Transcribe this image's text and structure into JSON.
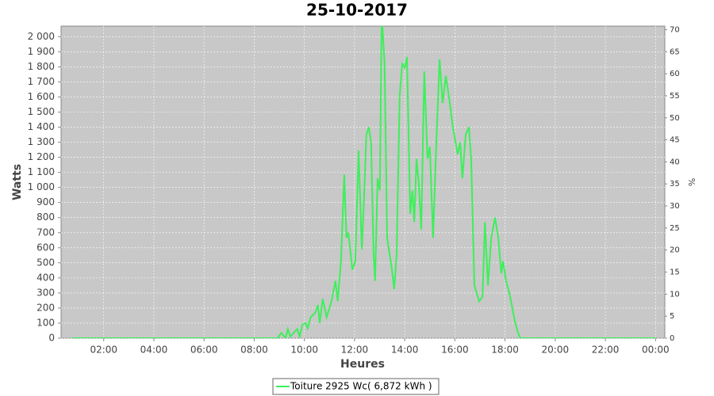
{
  "chart_data": {
    "type": "line",
    "title": "25-10-2017",
    "x_label": "Heures",
    "y_label": "Watts",
    "y2_label": "%",
    "xlim": [
      0.3,
      24.37
    ],
    "xticks": [
      {
        "value": 2,
        "label": "02:00"
      },
      {
        "value": 4,
        "label": "04:00"
      },
      {
        "value": 6,
        "label": "06:00"
      },
      {
        "value": 8,
        "label": "08:00"
      },
      {
        "value": 10,
        "label": "10:00"
      },
      {
        "value": 12,
        "label": "12:00"
      },
      {
        "value": 14,
        "label": "14:00"
      },
      {
        "value": 16,
        "label": "16:00"
      },
      {
        "value": 18,
        "label": "18:00"
      },
      {
        "value": 20,
        "label": "20:00"
      },
      {
        "value": 22,
        "label": "22:00"
      },
      {
        "value": 24,
        "label": "00:00"
      }
    ],
    "ylim": [
      0,
      2070
    ],
    "yticks": [
      0,
      100,
      200,
      300,
      400,
      500,
      600,
      700,
      800,
      900,
      {
        "value": 1000,
        "label": "1 000"
      },
      {
        "value": 1100,
        "label": "1 100"
      },
      {
        "value": 1200,
        "label": "1 200"
      },
      {
        "value": 1300,
        "label": "1 300"
      },
      {
        "value": 1400,
        "label": "1 400"
      },
      {
        "value": 1500,
        "label": "1 500"
      },
      {
        "value": 1600,
        "label": "1 600"
      },
      {
        "value": 1700,
        "label": "1 700"
      },
      {
        "value": 1800,
        "label": "1 800"
      },
      {
        "value": 1900,
        "label": "1 900"
      },
      {
        "value": 2000,
        "label": "2 000"
      }
    ],
    "y2lim": [
      0,
      70.8
    ],
    "y2ticks": [
      0,
      5,
      10,
      15,
      20,
      25,
      30,
      35,
      40,
      45,
      50,
      55,
      60,
      65,
      70
    ],
    "grid": true,
    "x": [
      0.73,
      8.93,
      9.08,
      9.25,
      9.34,
      9.44,
      9.62,
      9.72,
      9.81,
      9.92,
      10.05,
      10.13,
      10.25,
      10.44,
      10.54,
      10.61,
      10.73,
      10.89,
      11.08,
      11.24,
      11.33,
      11.46,
      11.59,
      11.68,
      11.75,
      11.81,
      11.91,
      12.03,
      12.16,
      12.29,
      12.38,
      12.47,
      12.57,
      12.66,
      12.76,
      12.82,
      12.92,
      13.01,
      13.08,
      13.2,
      13.3,
      13.49,
      13.58,
      13.68,
      13.8,
      13.9,
      14.0,
      14.09,
      14.22,
      14.31,
      14.38,
      14.47,
      14.56,
      14.66,
      14.78,
      14.91,
      15.0,
      15.13,
      15.26,
      15.39,
      15.51,
      15.64,
      15.8,
      15.92,
      16.11,
      16.21,
      16.3,
      16.43,
      16.56,
      16.65,
      16.78,
      16.97,
      17.1,
      17.2,
      17.32,
      17.45,
      17.6,
      17.73,
      17.85,
      17.92,
      18.04,
      18.17,
      18.27,
      18.39,
      18.52,
      18.61,
      24.0
    ],
    "series": [
      {
        "name": "Toiture 2925 Wc( 6,872 kWh )",
        "color": "#3cf05a",
        "values": [
          0,
          0,
          35,
          0,
          60,
          10,
          45,
          60,
          10,
          90,
          100,
          65,
          140,
          170,
          220,
          100,
          260,
          140,
          245,
          380,
          245,
          510,
          1085,
          665,
          700,
          615,
          455,
          510,
          1245,
          590,
          930,
          1350,
          1400,
          1295,
          560,
          380,
          1060,
          980,
          2150,
          1820,
          665,
          455,
          325,
          560,
          1610,
          1820,
          1795,
          1865,
          825,
          980,
          770,
          1190,
          1035,
          720,
          1770,
          1190,
          1270,
          665,
          1295,
          1850,
          1560,
          1740,
          1560,
          1400,
          1220,
          1300,
          1060,
          1350,
          1400,
          1190,
          350,
          245,
          275,
          770,
          350,
          665,
          800,
          665,
          430,
          510,
          380,
          300,
          220,
          115,
          35,
          0,
          0
        ]
      }
    ]
  }
}
